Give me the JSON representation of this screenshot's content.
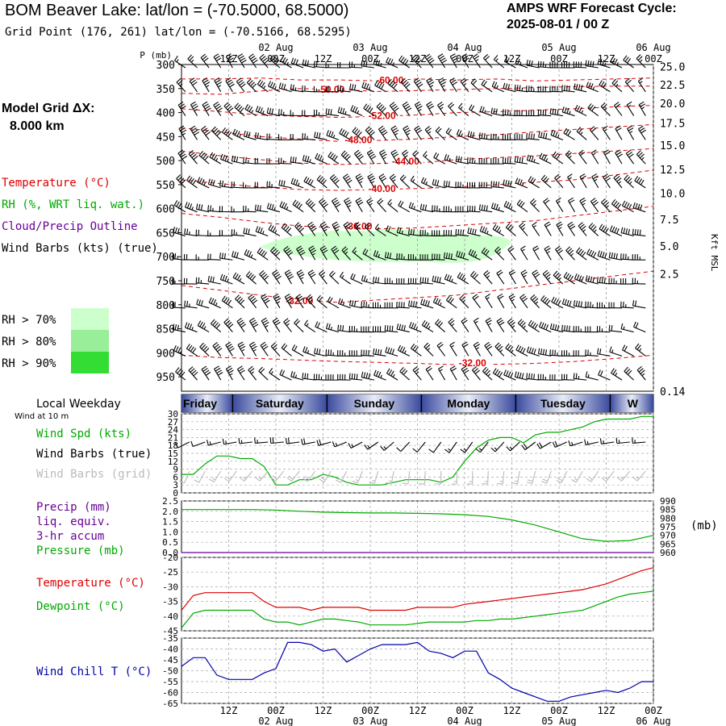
{
  "header": {
    "title": "BOM Beaver Lake:  lat/lon = (-70.5000, 68.5000)",
    "subtitle": "Grid Point (176, 261) lat/lon = (-70.5166, 68.5295)",
    "cycle_label": "AMPS WRF Forecast Cycle:",
    "cycle_value": "2025-08-01 / 00  Z",
    "grid_label": "Model Grid ΔX:",
    "grid_value": "8.000 km"
  },
  "colors": {
    "temperature": "#dd0000",
    "rh": "#00aa00",
    "cloud": "#660099",
    "wind": "#000000",
    "grid_barbs": "#bbbbbb",
    "precip": "#660099",
    "pressure": "#00aa00",
    "dewpoint": "#00aa00",
    "windchill": "#0000aa",
    "rh70": "#ccffcc",
    "rh80": "#99ee99",
    "rh90": "#33dd33",
    "day_band": "#3a4a9e"
  },
  "legends": {
    "upper": [
      {
        "text": "Temperature (°C)",
        "color": "#dd0000"
      },
      {
        "text": "RH (%, WRT liq. wat.)",
        "color": "#00aa00"
      },
      {
        "text": "Cloud/Precip Outline",
        "color": "#660099"
      },
      {
        "text": "Wind Barbs (kts) (true)",
        "color": "#000000"
      }
    ],
    "rh_levels": [
      {
        "text": "RH > 70%",
        "color": "#ccffcc"
      },
      {
        "text": "RH > 80%",
        "color": "#99ee99"
      },
      {
        "text": "RH > 90%",
        "color": "#33dd33"
      }
    ],
    "weekday_label": "Local Weekday",
    "wind10m_label": "Wind at 10 m",
    "wind": [
      {
        "text": "Wind Spd (kts)",
        "color": "#00aa00"
      },
      {
        "text": "Wind Barbs (true)",
        "color": "#000000"
      },
      {
        "text": "Wind Barbs (grid)",
        "color": "#bbbbbb"
      }
    ],
    "precip": [
      {
        "text": "Precip (mm)",
        "color": "#660099"
      },
      {
        "text": "liq. equiv.",
        "color": "#660099"
      },
      {
        "text": "3-hr accum",
        "color": "#660099"
      },
      {
        "text": "Pressure (mb)",
        "color": "#00aa00"
      }
    ],
    "temp": [
      {
        "text": "Temperature (°C)",
        "color": "#dd0000"
      },
      {
        "text": "Dewpoint (°C)",
        "color": "#00aa00"
      }
    ],
    "chill": [
      {
        "text": "Wind Chill T (°C)",
        "color": "#0000aa"
      }
    ]
  },
  "chart_data": [
    {
      "type": "heatmap",
      "name": "upper_cross_section",
      "ylabel": "P (mb)",
      "y_right_label": "Kft MSL",
      "pressure_levels": [
        300,
        350,
        400,
        450,
        500,
        550,
        600,
        650,
        700,
        750,
        800,
        850,
        900,
        950
      ],
      "ylim": [
        980,
        300
      ],
      "altitude_kft": [
        25.0,
        22.5,
        20.0,
        17.5,
        15.0,
        12.5,
        10.0,
        7.5,
        5.0,
        2.5,
        0.14
      ],
      "altitude_labels": [
        "25.0",
        "22.5",
        "20.0",
        "17.5",
        "15.0",
        "12.5",
        "10.0",
        "7.5",
        "5.0",
        "2.5",
        "0.14"
      ],
      "altitude_pressure": [
        304,
        342,
        381,
        422,
        468,
        518,
        568,
        622,
        678,
        736,
        795
      ],
      "x_hours": [
        0,
        120
      ],
      "time_ticks": [
        {
          "h": 12,
          "label": "12Z"
        },
        {
          "h": 24,
          "label": "00Z"
        },
        {
          "h": 36,
          "label": "12Z"
        },
        {
          "h": 48,
          "label": "00Z"
        },
        {
          "h": 60,
          "label": "12Z"
        },
        {
          "h": 72,
          "label": "00Z"
        },
        {
          "h": 84,
          "label": "12Z"
        },
        {
          "h": 96,
          "label": "00Z"
        },
        {
          "h": 108,
          "label": "12Z"
        },
        {
          "h": 120,
          "label": "00Z"
        }
      ],
      "date_ticks": [
        {
          "h": 24,
          "label": "02 Aug"
        },
        {
          "h": 48,
          "label": "03 Aug"
        },
        {
          "h": 72,
          "label": "04 Aug"
        },
        {
          "h": 96,
          "label": "05 Aug"
        },
        {
          "h": 120,
          "label": "06 Aug"
        }
      ],
      "temperature_contours": [
        {
          "label": "-60.00",
          "h": 53,
          "p": 336
        },
        {
          "label": "-50.00",
          "h": 38,
          "p": 355
        },
        {
          "label": "-52.00",
          "h": 51,
          "p": 410
        },
        {
          "label": "-48.00",
          "h": 45,
          "p": 460
        },
        {
          "label": "-44.00",
          "h": 57,
          "p": 505
        },
        {
          "label": "-40.00",
          "h": 51,
          "p": 562
        },
        {
          "label": "-36.00",
          "h": 45,
          "p": 640
        },
        {
          "label": "-32.00",
          "h": 30,
          "p": 795
        },
        {
          "label": "-32.00",
          "h": 74,
          "p": 925
        }
      ],
      "rh_regions": [
        {
          "level": "RH > 70%",
          "h_range": [
            20,
            84
          ],
          "p_range": [
            650,
            710
          ]
        }
      ],
      "grid": true
    },
    {
      "type": "table",
      "name": "local_weekday",
      "days": [
        "Friday",
        "Saturday",
        "Sunday",
        "Monday",
        "Tuesday",
        "W"
      ],
      "day_starts_h": [
        -11,
        13,
        37,
        61,
        85,
        109
      ]
    },
    {
      "type": "line",
      "name": "wind_10m",
      "ylabel": "Wind Spd (kts)",
      "ylim": [
        0,
        30
      ],
      "yticks": [
        0,
        3,
        6,
        9,
        12,
        15,
        18,
        21,
        24,
        27,
        30
      ],
      "x_hours": [
        0,
        3,
        6,
        9,
        12,
        15,
        18,
        21,
        24,
        27,
        30,
        33,
        36,
        39,
        42,
        45,
        48,
        51,
        54,
        57,
        60,
        63,
        66,
        69,
        72,
        75,
        78,
        81,
        84,
        87,
        90,
        93,
        96,
        99,
        102,
        105,
        108,
        111,
        114,
        117,
        120
      ],
      "series": [
        {
          "name": "Wind Spd (kts)",
          "values": [
            7,
            7,
            11,
            14,
            14,
            13,
            13,
            10,
            3,
            3,
            5,
            5,
            7,
            6,
            4,
            3,
            3,
            3,
            4,
            5,
            5,
            5,
            4,
            6,
            12,
            17,
            20,
            21,
            21,
            19,
            22,
            23,
            23,
            24,
            25,
            27,
            28,
            28,
            28,
            29,
            29
          ]
        }
      ],
      "grid": true
    },
    {
      "type": "line",
      "name": "precip_pressure",
      "ylabel": "Precip (mm)",
      "ylim": [
        0,
        2.5
      ],
      "yticks": [
        0,
        0.5,
        1,
        1.5,
        2,
        2.5
      ],
      "ytick_labels": [
        "0.0",
        "0.5",
        "1.0",
        "1.5",
        "2.0",
        "2.5"
      ],
      "y2label": "(mb)",
      "y2lim": [
        960,
        990
      ],
      "y2ticks": [
        960,
        965,
        970,
        975,
        980,
        985,
        990
      ],
      "x_hours": [
        0,
        6,
        12,
        18,
        24,
        30,
        36,
        42,
        48,
        54,
        60,
        66,
        72,
        78,
        84,
        90,
        96,
        102,
        108,
        114,
        120
      ],
      "series": [
        {
          "name": "Pressure (mb)",
          "axis": "y2",
          "values": [
            985,
            985,
            985,
            985,
            984.7,
            984,
            983.5,
            983.2,
            983,
            983,
            982.8,
            982.5,
            982,
            981,
            979,
            976,
            972,
            968,
            966.5,
            967,
            970
          ]
        },
        {
          "name": "Precip (mm)",
          "axis": "y",
          "values": [
            0,
            0,
            0,
            0,
            0,
            0,
            0,
            0,
            0,
            0,
            0,
            0,
            0,
            0,
            0,
            0,
            0,
            0,
            0,
            0,
            0
          ]
        }
      ],
      "grid": true
    },
    {
      "type": "line",
      "name": "temperature_dewpoint",
      "ylim": [
        -45,
        -20
      ],
      "yticks": [
        -45,
        -40,
        -35,
        -30,
        -25,
        -20
      ],
      "x_hours": [
        0,
        3,
        6,
        9,
        12,
        15,
        18,
        21,
        24,
        27,
        30,
        33,
        36,
        39,
        42,
        45,
        48,
        51,
        54,
        57,
        60,
        63,
        66,
        69,
        72,
        75,
        78,
        81,
        84,
        87,
        90,
        93,
        96,
        99,
        102,
        105,
        108,
        111,
        114,
        117,
        120
      ],
      "series": [
        {
          "name": "Temperature (°C)",
          "values": [
            -38,
            -33,
            -32,
            -32,
            -32,
            -32,
            -32,
            -35,
            -37,
            -37,
            -37,
            -38,
            -37,
            -37,
            -37,
            -37,
            -38,
            -38,
            -38,
            -38,
            -37,
            -37,
            -37,
            -37,
            -36,
            -35.5,
            -35,
            -34.5,
            -34,
            -33.5,
            -33,
            -32.5,
            -32,
            -31.5,
            -31,
            -30,
            -29,
            -27.5,
            -26,
            -24.5,
            -23.5
          ]
        },
        {
          "name": "Dewpoint (°C)",
          "values": [
            -44,
            -39,
            -38,
            -38,
            -38,
            -38,
            -38,
            -41,
            -42,
            -42,
            -43,
            -42,
            -41,
            -41,
            -41.5,
            -42,
            -43,
            -43,
            -43,
            -43,
            -42.5,
            -42,
            -42,
            -42,
            -42,
            -41.5,
            -41.5,
            -41,
            -41,
            -40.5,
            -40,
            -39.5,
            -39,
            -38.5,
            -38,
            -36.5,
            -35,
            -33.5,
            -32.5,
            -32,
            -31.5
          ]
        }
      ],
      "grid": true
    },
    {
      "type": "line",
      "name": "wind_chill",
      "ylim": [
        -65,
        -35
      ],
      "yticks": [
        -65,
        -60,
        -55,
        -50,
        -45,
        -40,
        -35
      ],
      "x_hours": [
        0,
        3,
        6,
        9,
        12,
        15,
        18,
        21,
        24,
        27,
        30,
        33,
        36,
        39,
        42,
        45,
        48,
        51,
        54,
        57,
        60,
        63,
        66,
        69,
        72,
        75,
        78,
        81,
        84,
        87,
        90,
        93,
        96,
        99,
        102,
        105,
        108,
        111,
        114,
        117,
        120
      ],
      "series": [
        {
          "name": "Wind Chill T (°C)",
          "values": [
            -48,
            -44,
            -44,
            -52,
            -54,
            -54,
            -54,
            -51,
            -49,
            -37,
            -37,
            -38,
            -41,
            -40,
            -46,
            -43,
            -40,
            -38,
            -38,
            -38,
            -37,
            -41,
            -42,
            -44,
            -41,
            -41,
            -51,
            -54,
            -58,
            -60,
            -62,
            -64,
            -64,
            -62,
            -61,
            -60,
            -59,
            -60,
            -58,
            -55,
            -55
          ]
        }
      ],
      "grid": true
    }
  ]
}
